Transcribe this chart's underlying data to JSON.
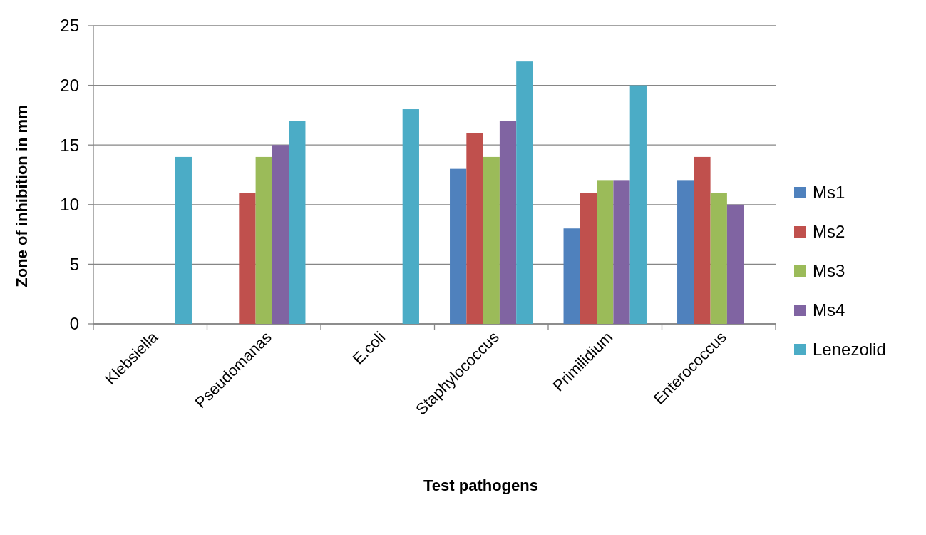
{
  "chart_data": {
    "type": "bar",
    "xlabel": "Test pathogens",
    "ylabel": "Zone of inhibition in mm",
    "categories": [
      "Klebsiella",
      "Pseudomanas",
      "E.coli",
      "Staphylococcus",
      "Primilidium",
      "Enterococcus"
    ],
    "series": [
      {
        "name": "Ms1",
        "color": "#4f81bd",
        "values": [
          0,
          0,
          0,
          13,
          8,
          12
        ]
      },
      {
        "name": "Ms2",
        "color": "#c0504d",
        "values": [
          0,
          11,
          0,
          16,
          11,
          14
        ]
      },
      {
        "name": "Ms3",
        "color": "#9bbb59",
        "values": [
          0,
          14,
          0,
          14,
          12,
          11
        ]
      },
      {
        "name": "Ms4",
        "color": "#8064a2",
        "values": [
          0,
          15,
          0,
          17,
          12,
          10
        ]
      },
      {
        "name": "Lenezolid",
        "color": "#4bacc6",
        "values": [
          14,
          17,
          18,
          22,
          20,
          0
        ]
      }
    ],
    "ylim": [
      0,
      25
    ],
    "yticks": [
      0,
      5,
      10,
      15,
      20,
      25
    ],
    "grid": "y",
    "legend": "right"
  }
}
